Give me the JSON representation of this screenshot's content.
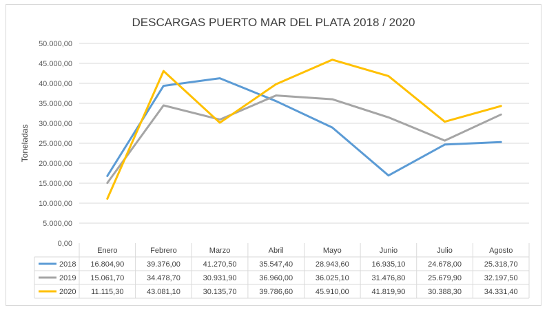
{
  "chart_data": {
    "type": "line",
    "title": "DESCARGAS PUERTO MAR DEL PLATA 2018 / 2020",
    "xlabel": "",
    "ylabel": "Toneladas",
    "ylim": [
      0,
      50000
    ],
    "yticks": [
      "0,00",
      "5.000,00",
      "10.000,00",
      "15.000,00",
      "20.000,00",
      "25.000,00",
      "30.000,00",
      "35.000,00",
      "40.000,00",
      "45.000,00",
      "50.000,00"
    ],
    "categories": [
      "Enero",
      "Febrero",
      "Marzo",
      "Abril",
      "Mayo",
      "Junio",
      "Julio",
      "Agosto"
    ],
    "grid": true,
    "legend": "data-table",
    "series": [
      {
        "name": "2018",
        "color": "#5b9bd5",
        "values": [
          16804.9,
          39376.0,
          41270.5,
          35547.4,
          28943.6,
          16935.1,
          24678.0,
          25318.7
        ],
        "labels": [
          "16.804,90",
          "39.376,00",
          "41.270,50",
          "35.547,40",
          "28.943,60",
          "16.935,10",
          "24.678,00",
          "25.318,70"
        ]
      },
      {
        "name": "2019",
        "color": "#a5a5a5",
        "values": [
          15061.7,
          34478.7,
          30931.9,
          36960.0,
          36025.1,
          31476.8,
          25679.9,
          32197.5
        ],
        "labels": [
          "15.061,70",
          "34.478,70",
          "30.931,90",
          "36.960,00",
          "36.025,10",
          "31.476,80",
          "25.679,90",
          "32.197,50"
        ]
      },
      {
        "name": "2020",
        "color": "#ffc000",
        "values": [
          11115.3,
          43081.1,
          30135.7,
          39786.6,
          45910.0,
          41819.9,
          30388.3,
          34331.4
        ],
        "labels": [
          "11.115,30",
          "43.081,10",
          "30.135,70",
          "39.786,60",
          "45.910,00",
          "41.819,90",
          "30.388,30",
          "34.331,40"
        ]
      }
    ]
  }
}
